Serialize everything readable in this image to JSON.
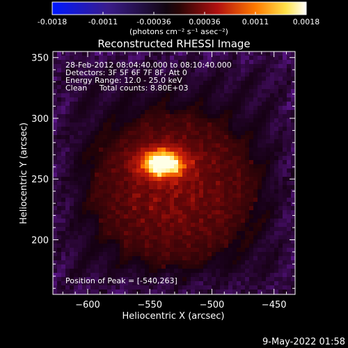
{
  "chart_data": {
    "type": "heatmap",
    "title": "Reconstructed RHESSI Image",
    "xlabel": "Heliocentric X (arcsec)",
    "ylabel": "Heliocentric Y (arcsec)",
    "xlim": [
      -628,
      -433
    ],
    "ylim": [
      155,
      355
    ],
    "xticks": [
      -600,
      -550,
      -500,
      -450
    ],
    "yticks": [
      200,
      250,
      300,
      350
    ],
    "colorbar": {
      "ticks": [
        "-0.0018",
        "-0.0011",
        "-0.00036",
        "0.00036",
        "0.0011",
        "0.0018"
      ],
      "units_label": "(photons cm⁻² s⁻¹ asec⁻²)",
      "range": [
        -0.0018,
        0.0018
      ]
    },
    "annotations": [
      "28-Feb-2012 08:04:40.000 to 08:10:40.000",
      "Detectors: 3F 5F 6F 7F 8F, Att 0",
      "Energy Range: 12.0 - 25.0 keV",
      "Clean     Total counts: 8.80E+03"
    ],
    "peak_label": "Position of Peak = [-540,263]",
    "peak": {
      "x": -540,
      "y": 263
    },
    "timestamp": "9-May-2022 01:58"
  }
}
